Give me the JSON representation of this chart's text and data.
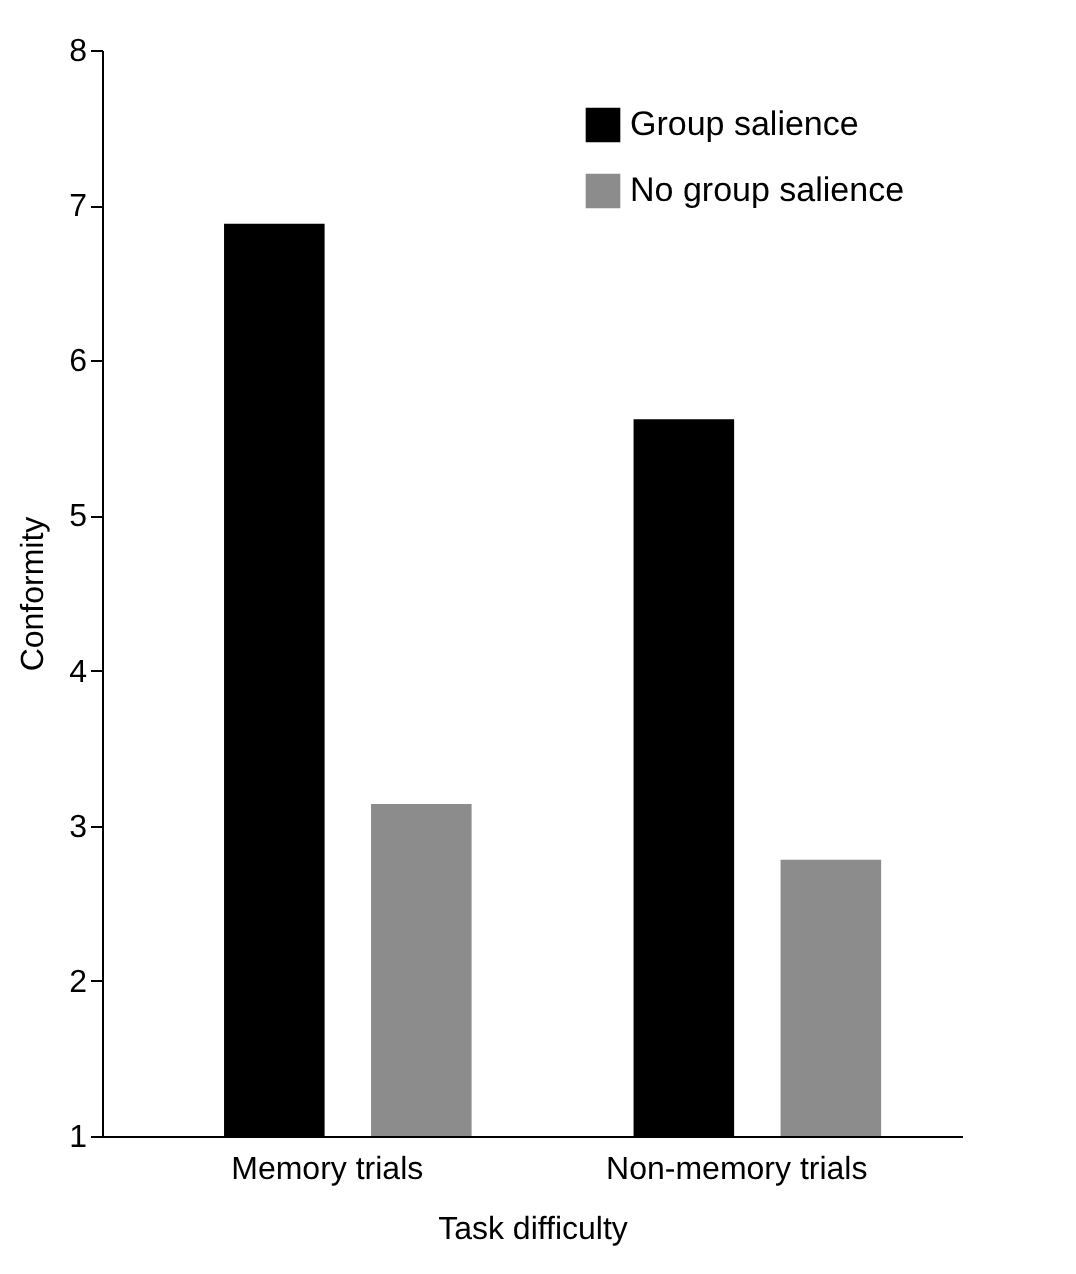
{
  "chart_data": {
    "type": "bar",
    "xlabel": "Task difficulty",
    "ylabel": "Conformity",
    "categories": [
      "Memory trials",
      "Non-memory trials"
    ],
    "series": [
      {
        "name": "Group salience",
        "color": "#000000",
        "values": [
          6.88,
          5.62
        ]
      },
      {
        "name": "No group salience",
        "color": "#8c8c8c",
        "values": [
          3.14,
          2.78
        ]
      }
    ],
    "ylim": [
      1,
      8
    ],
    "yticks": [
      1,
      2,
      3,
      4,
      5,
      6,
      7,
      8
    ],
    "grid": false,
    "legend": "top right"
  }
}
